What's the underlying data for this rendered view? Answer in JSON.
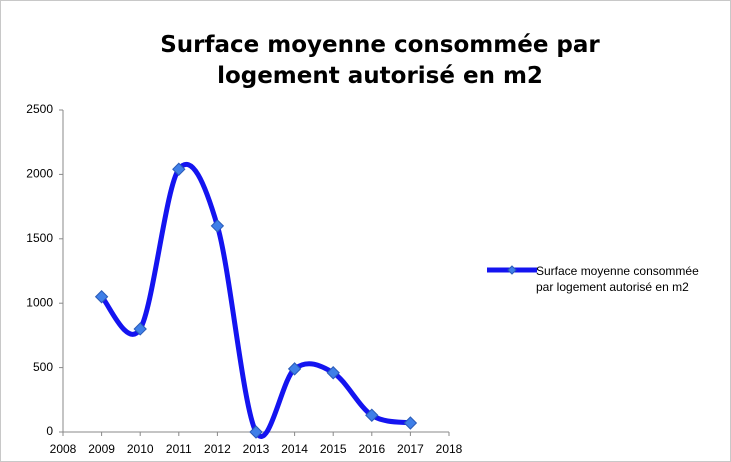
{
  "chart_data": {
    "type": "line",
    "title": "Surface moyenne consommée par logement autorisé en m2",
    "x": [
      2009,
      2010,
      2011,
      2012,
      2013,
      2014,
      2015,
      2016,
      2017
    ],
    "series": [
      {
        "name": "Surface moyenne consommée par logement autorisé en m2",
        "color": "#1414f0",
        "marker_color": "#3f7fe8",
        "values": [
          1050,
          800,
          2040,
          1600,
          0,
          490,
          460,
          130,
          70
        ]
      }
    ],
    "smooth": true,
    "xlim": [
      2008,
      2018
    ],
    "xticks": [
      2008,
      2009,
      2010,
      2011,
      2012,
      2013,
      2014,
      2015,
      2016,
      2017,
      2018
    ],
    "ylim": [
      0,
      2500
    ],
    "yticks": [
      0,
      500,
      1000,
      1500,
      2000,
      2500
    ],
    "grid": false,
    "legend": "right"
  }
}
